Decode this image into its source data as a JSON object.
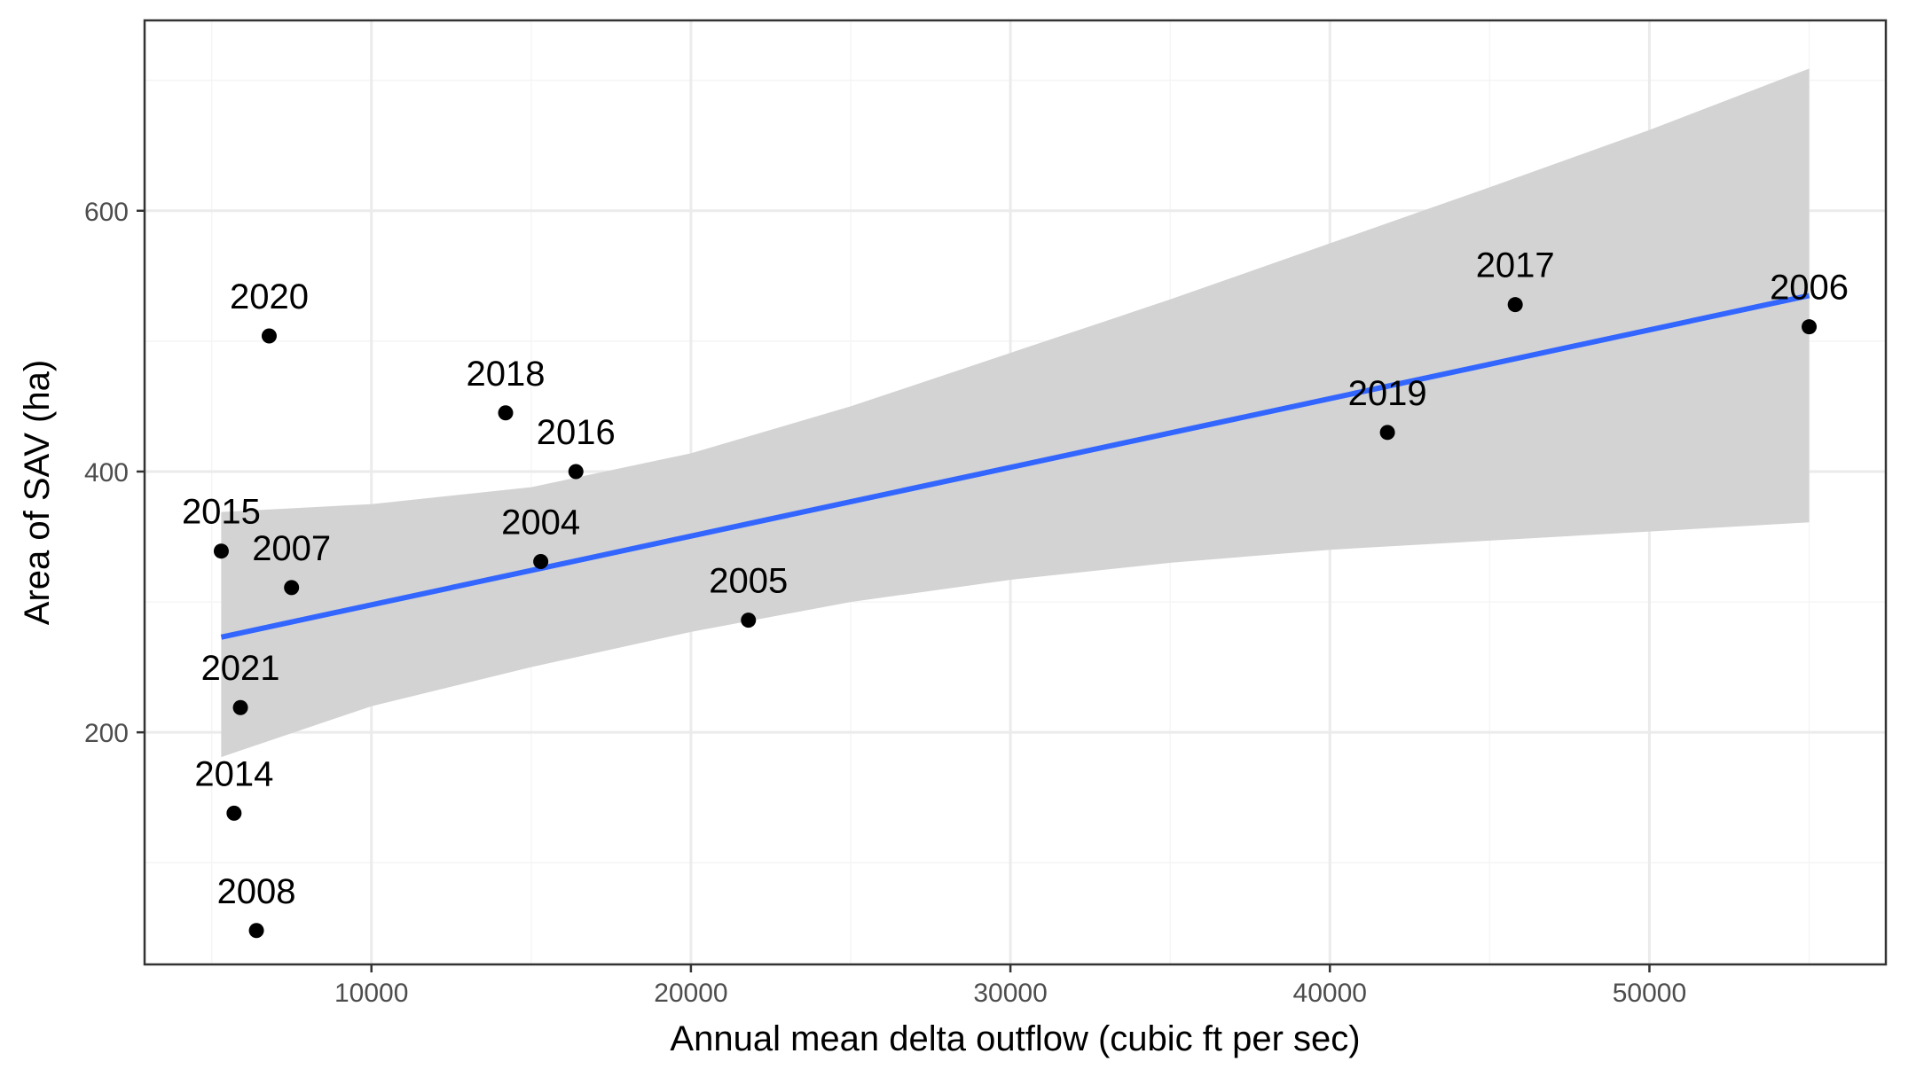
{
  "chart_data": {
    "type": "scatter",
    "title": "",
    "xlabel": "Annual mean delta outflow (cubic ft per sec)",
    "ylabel": "Area of SAV (ha)",
    "xlim": [
      2900,
      57400
    ],
    "ylim": [
      22,
      746
    ],
    "x_ticks": [
      10000,
      20000,
      30000,
      40000,
      50000
    ],
    "y_ticks": [
      200,
      400,
      600
    ],
    "x_tick_labels": [
      "10000",
      "20000",
      "30000",
      "40000",
      "50000"
    ],
    "y_tick_labels": [
      "200",
      "400",
      "600"
    ],
    "grid": true,
    "series": [
      {
        "points": [
          {
            "label": "2004",
            "x": 15300,
            "y": 331
          },
          {
            "label": "2005",
            "x": 21800,
            "y": 286
          },
          {
            "label": "2006",
            "x": 55000,
            "y": 511
          },
          {
            "label": "2007",
            "x": 7500,
            "y": 311
          },
          {
            "label": "2008",
            "x": 6400,
            "y": 48
          },
          {
            "label": "2014",
            "x": 5700,
            "y": 138
          },
          {
            "label": "2015",
            "x": 5300,
            "y": 339
          },
          {
            "label": "2016",
            "x": 16400,
            "y": 400
          },
          {
            "label": "2017",
            "x": 45800,
            "y": 528
          },
          {
            "label": "2018",
            "x": 14200,
            "y": 445
          },
          {
            "label": "2019",
            "x": 41800,
            "y": 430
          },
          {
            "label": "2020",
            "x": 6800,
            "y": 504
          },
          {
            "label": "2021",
            "x": 5900,
            "y": 219
          }
        ]
      }
    ],
    "fit": {
      "x": [
        5300,
        55000
      ],
      "y": [
        273,
        535
      ],
      "ci_x": [
        5300,
        10000,
        15000,
        20000,
        25000,
        30000,
        35000,
        40000,
        45000,
        50000,
        55000
      ],
      "ci_lower": [
        181,
        220,
        250,
        277,
        300,
        317,
        330,
        340,
        347,
        354,
        361
      ],
      "ci_upper": [
        369,
        375,
        388,
        414,
        450,
        491,
        532,
        575,
        618,
        662,
        709
      ]
    },
    "colors": {
      "points": "#000000",
      "fit_line": "#3366ff",
      "ci_band": "#d3d3d3",
      "grid_major": "#ebebeb",
      "grid_minor": "#f5f5f5",
      "panel_border": "#333333",
      "tick_text": "#4d4d4d"
    }
  }
}
